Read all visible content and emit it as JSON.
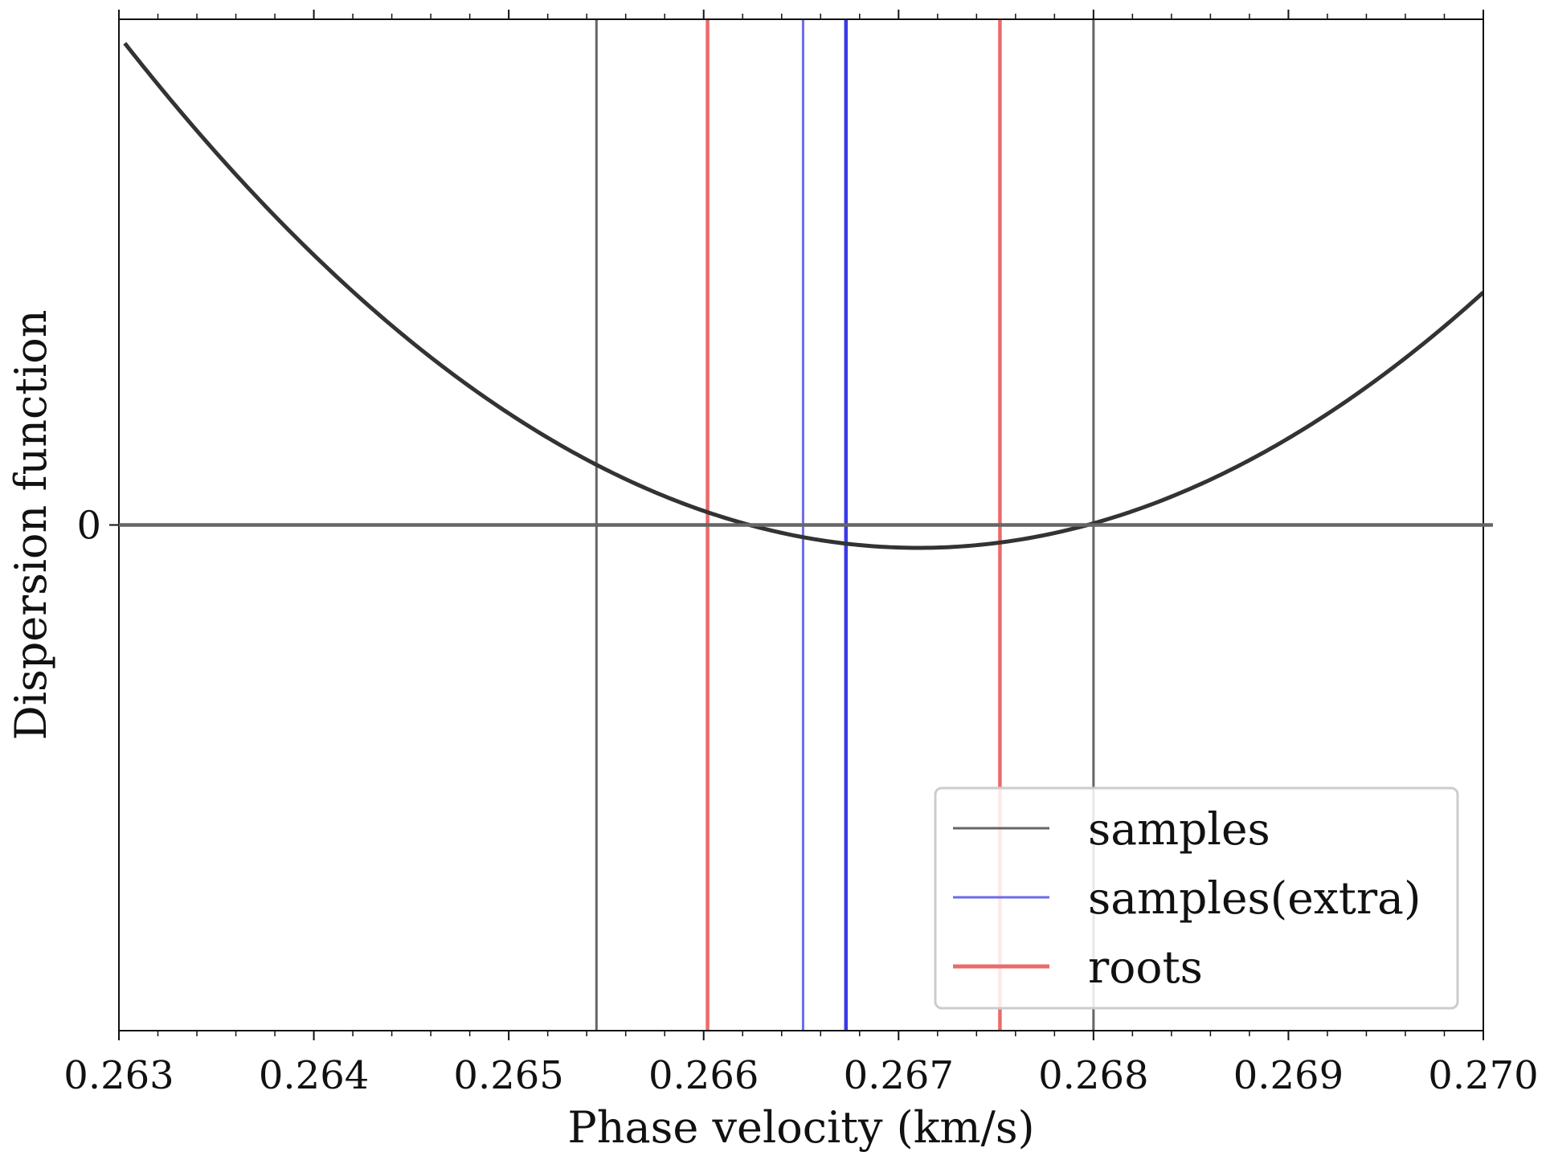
{
  "chart_data": {
    "type": "line",
    "title": "",
    "xlabel": "Phase velocity (km/s)",
    "ylabel": "Dispersion function",
    "xlim": [
      0.263,
      0.27
    ],
    "ylim": [
      -1.0,
      1.0
    ],
    "x_ticks": [
      "0.263",
      "0.264",
      "0.265",
      "0.266",
      "0.267",
      "0.268",
      "0.269",
      "0.270"
    ],
    "x_tick_values": [
      0.263,
      0.264,
      0.265,
      0.266,
      0.267,
      0.268,
      0.269,
      0.27
    ],
    "y_ticks": [
      "0"
    ],
    "y_tick_values": [
      0
    ],
    "grid": false,
    "legend_position": "lower-right",
    "series": [
      {
        "role": "curve",
        "color": "#333333",
        "x": [
          0.26303,
          0.2635,
          0.264,
          0.2645,
          0.265,
          0.26545,
          0.266,
          0.2665,
          0.26673,
          0.267,
          0.26752,
          0.268,
          0.2685,
          0.269,
          0.2695,
          0.27
        ],
        "y": [
          1.0,
          0.76,
          0.53,
          0.33,
          0.16,
          0.07,
          0.0,
          -0.025,
          -0.03,
          -0.025,
          0.0,
          0.05,
          0.12,
          0.2,
          0.29,
          0.39
        ]
      },
      {
        "role": "zero-line",
        "color": "#666666",
        "y": 0
      }
    ],
    "vertical_lines": [
      {
        "group": "samples",
        "x": 0.26545,
        "color": "#666666"
      },
      {
        "group": "samples",
        "x": 0.268,
        "color": "#666666"
      },
      {
        "group": "samples(extra)",
        "x": 0.26651,
        "color": "#6b6bea"
      },
      {
        "group": "samples(extra)",
        "x": 0.26673,
        "color": "#3a3ae6"
      },
      {
        "group": "roots",
        "x": 0.26602,
        "color": "#ec6a6a"
      },
      {
        "group": "roots",
        "x": 0.26752,
        "color": "#ec6a6a"
      }
    ],
    "legend": [
      {
        "label": "samples",
        "color": "#666666"
      },
      {
        "label": "samples(extra)",
        "color": "#6b6bea"
      },
      {
        "label": "roots",
        "color": "#ec6a6a"
      }
    ]
  }
}
